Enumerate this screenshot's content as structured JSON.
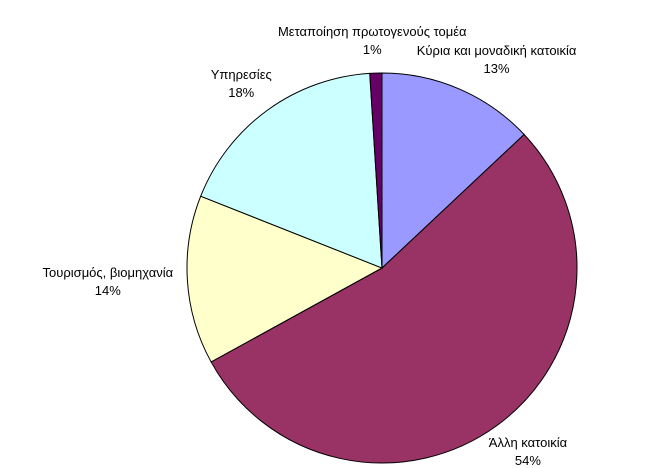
{
  "chart_data": {
    "type": "pie",
    "categories": [
      "Κύρια και μοναδική κατοικία",
      "Άλλη κατοικία",
      "Τουρισμός, βιομηχανία",
      "Υπηρεσίες",
      "Μεταποίηση πρωτογενούς τομέα"
    ],
    "values": [
      13,
      54,
      14,
      18,
      1
    ],
    "value_labels": [
      "13%",
      "54%",
      "14%",
      "18%",
      "1%"
    ],
    "colors": [
      "#9999ff",
      "#993366",
      "#ffffcc",
      "#ccffff",
      "#660066"
    ]
  }
}
